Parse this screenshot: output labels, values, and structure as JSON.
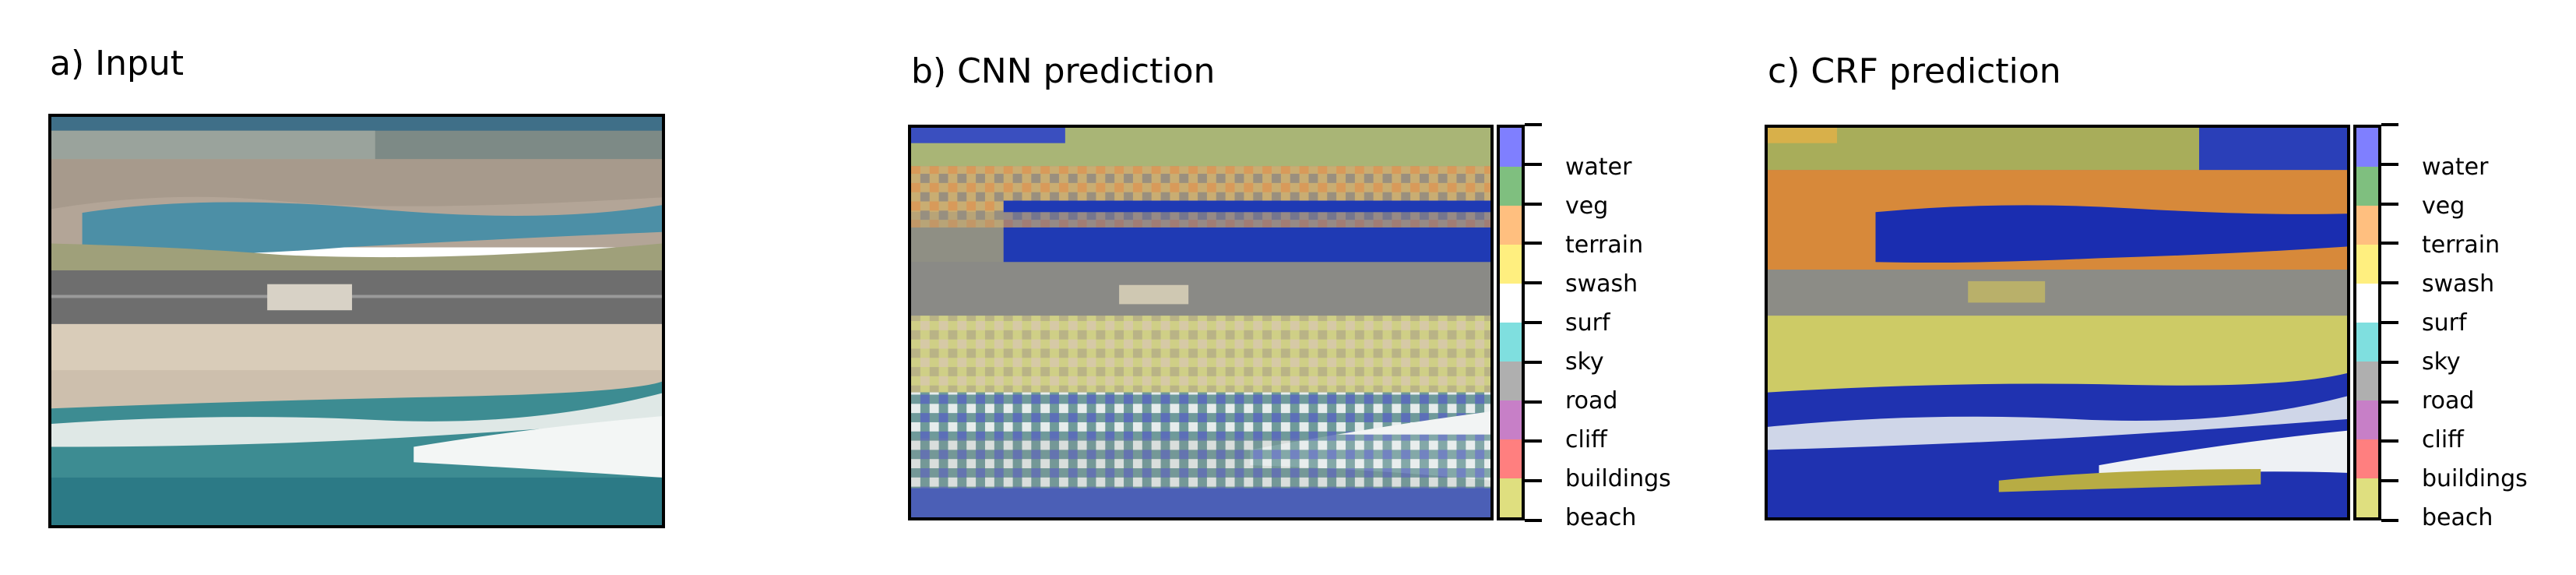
{
  "panels": {
    "input": {
      "title": "a) Input"
    },
    "cnn": {
      "title": "b) CNN prediction"
    },
    "crf": {
      "title": "c) CRF prediction"
    }
  },
  "classes": [
    {
      "name": "water",
      "color": "#7f7fff"
    },
    {
      "name": "veg",
      "color": "#7fbf7f"
    },
    {
      "name": "terrain",
      "color": "#ffbf7f"
    },
    {
      "name": "swash",
      "color": "#ffef7f"
    },
    {
      "name": "surf",
      "color": "#ffffff"
    },
    {
      "name": "sky",
      "color": "#7fdfdf"
    },
    {
      "name": "road",
      "color": "#afafaf"
    },
    {
      "name": "cliff",
      "color": "#c77fc7"
    },
    {
      "name": "buildings",
      "color": "#ff7f7f"
    },
    {
      "name": "beach",
      "color": "#dfdf7f"
    }
  ]
}
